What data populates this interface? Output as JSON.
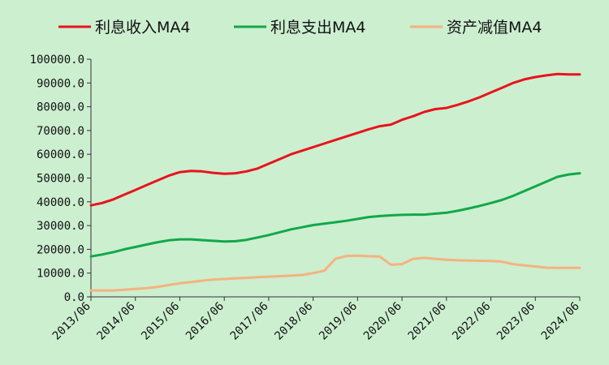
{
  "chart_data": {
    "type": "line",
    "title": "",
    "xlabel": "",
    "ylabel": "",
    "x": [
      "2013/06",
      "2013/09",
      "2013/12",
      "2014/03",
      "2014/06",
      "2014/09",
      "2014/12",
      "2015/03",
      "2015/06",
      "2015/09",
      "2015/12",
      "2016/03",
      "2016/06",
      "2016/09",
      "2016/12",
      "2017/03",
      "2017/06",
      "2017/09",
      "2017/12",
      "2018/03",
      "2018/06",
      "2018/09",
      "2018/12",
      "2019/03",
      "2019/06",
      "2019/09",
      "2019/12",
      "2020/03",
      "2020/06",
      "2020/09",
      "2020/12",
      "2021/03",
      "2021/06",
      "2021/09",
      "2021/12",
      "2022/03",
      "2022/06",
      "2022/09",
      "2022/12",
      "2023/03",
      "2023/06",
      "2023/09",
      "2023/12",
      "2024/03",
      "2024/06"
    ],
    "x_ticks": [
      "2013/06",
      "2014/06",
      "2015/06",
      "2016/06",
      "2017/06",
      "2018/06",
      "2019/06",
      "2020/06",
      "2021/06",
      "2022/06",
      "2023/06",
      "2024/06"
    ],
    "ylim": [
      0,
      100000
    ],
    "y_ticks": [
      "0.0",
      "10000.0",
      "20000.0",
      "30000.0",
      "40000.0",
      "50000.0",
      "60000.0",
      "70000.0",
      "80000.0",
      "90000.0",
      "100000.0"
    ],
    "grid": false,
    "legend_position": "top",
    "series": [
      {
        "name": "利息收入MA4",
        "color": "#e8141b",
        "values": [
          38500,
          39500,
          41000,
          43000,
          45000,
          47000,
          49000,
          51000,
          52500,
          53000,
          52800,
          52200,
          51800,
          52000,
          52800,
          54000,
          56000,
          58000,
          60000,
          61500,
          63000,
          64500,
          66000,
          67500,
          69000,
          70500,
          71800,
          72500,
          74500,
          76000,
          77800,
          79000,
          79500,
          80800,
          82300,
          84000,
          86000,
          88000,
          90000,
          91500,
          92500,
          93200,
          93800,
          93600,
          93600
        ],
        "stroke_width": 3
      },
      {
        "name": "利息支出MA4",
        "color": "#12a84a",
        "values": [
          17000,
          17800,
          18800,
          20000,
          21000,
          22000,
          23000,
          23800,
          24200,
          24200,
          23900,
          23600,
          23300,
          23400,
          24000,
          25000,
          26000,
          27200,
          28400,
          29300,
          30200,
          30800,
          31400,
          32000,
          32800,
          33600,
          34000,
          34300,
          34500,
          34600,
          34600,
          35000,
          35400,
          36200,
          37200,
          38300,
          39500,
          40800,
          42500,
          44500,
          46500,
          48500,
          50500,
          51500,
          52000
        ],
        "stroke_width": 3
      },
      {
        "name": "资产减值MA4",
        "color": "#f5b27f",
        "values": [
          2700,
          2700,
          2700,
          3000,
          3300,
          3700,
          4200,
          5000,
          5700,
          6200,
          6800,
          7300,
          7500,
          7800,
          8000,
          8300,
          8500,
          8700,
          8900,
          9200,
          10000,
          11000,
          16000,
          17200,
          17300,
          17100,
          17000,
          13500,
          13800,
          16000,
          16400,
          16000,
          15600,
          15400,
          15300,
          15200,
          15100,
          14800,
          13800,
          13200,
          12800,
          12300,
          12200,
          12200,
          12200
        ],
        "stroke_width": 3
      }
    ]
  }
}
